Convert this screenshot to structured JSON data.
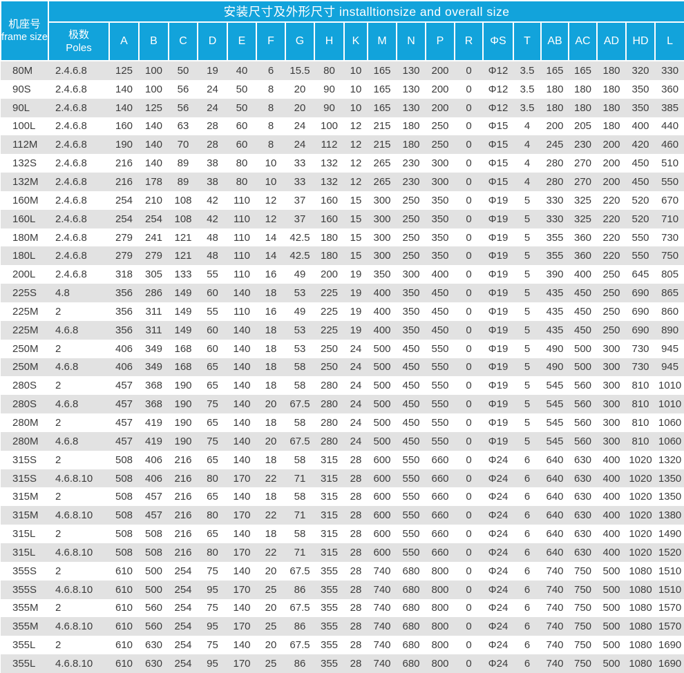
{
  "colors": {
    "header_bg": "#12a3db",
    "header_text": "#ffffff",
    "row_stripe": "#e2e2e2",
    "row_plain": "#ffffff",
    "body_text": "#3b3b3b"
  },
  "table": {
    "title_zh": "安装尺寸及外形尺寸",
    "title_en": "installtionsize and overall size",
    "title_full": "安装尺寸及外形尺寸 installtionsize and overall size",
    "frame_size_header_zh": "机座号",
    "frame_size_header_en": "frame size",
    "poles_header_zh": "极数",
    "poles_header_en": "Poles",
    "dim_columns": [
      "A",
      "B",
      "C",
      "D",
      "E",
      "F",
      "G",
      "H",
      "K",
      "M",
      "N",
      "P",
      "R",
      "ΦS",
      "T",
      "AB",
      "AC",
      "AD",
      "HD",
      "L"
    ],
    "rows": [
      {
        "frame": "80M",
        "poles": "2.4.6.8",
        "values": [
          125,
          100,
          50,
          19,
          40,
          6,
          15.5,
          80,
          10,
          165,
          130,
          200,
          0,
          "Φ12",
          3.5,
          165,
          165,
          180,
          320,
          330
        ]
      },
      {
        "frame": "90S",
        "poles": "2.4.6.8",
        "values": [
          140,
          100,
          56,
          24,
          50,
          8,
          20,
          90,
          10,
          165,
          130,
          200,
          0,
          "Φ12",
          3.5,
          180,
          180,
          180,
          350,
          360
        ]
      },
      {
        "frame": "90L",
        "poles": "2.4.6.8",
        "values": [
          140,
          125,
          56,
          24,
          50,
          8,
          20,
          90,
          10,
          165,
          130,
          200,
          0,
          "Φ12",
          3.5,
          180,
          180,
          180,
          350,
          385
        ]
      },
      {
        "frame": "100L",
        "poles": "2.4.6.8",
        "values": [
          160,
          140,
          63,
          28,
          60,
          8,
          24,
          100,
          12,
          215,
          180,
          250,
          0,
          "Φ15",
          4,
          200,
          205,
          180,
          400,
          440
        ]
      },
      {
        "frame": "112M",
        "poles": "2.4.6.8",
        "values": [
          190,
          140,
          70,
          28,
          60,
          8,
          24,
          112,
          12,
          215,
          180,
          250,
          0,
          "Φ15",
          4,
          245,
          230,
          200,
          420,
          460
        ]
      },
      {
        "frame": "132S",
        "poles": "2.4.6.8",
        "values": [
          216,
          140,
          89,
          38,
          80,
          10,
          33,
          132,
          12,
          265,
          230,
          300,
          0,
          "Φ15",
          4,
          280,
          270,
          200,
          450,
          510
        ]
      },
      {
        "frame": "132M",
        "poles": "2.4.6.8",
        "values": [
          216,
          178,
          89,
          38,
          80,
          10,
          33,
          132,
          12,
          265,
          230,
          300,
          0,
          "Φ15",
          4,
          280,
          270,
          200,
          450,
          550
        ]
      },
      {
        "frame": "160M",
        "poles": "2.4.6.8",
        "values": [
          254,
          210,
          108,
          42,
          110,
          12,
          37,
          160,
          15,
          300,
          250,
          350,
          0,
          "Φ19",
          5,
          330,
          325,
          220,
          520,
          670
        ]
      },
      {
        "frame": "160L",
        "poles": "2.4.6.8",
        "values": [
          254,
          254,
          108,
          42,
          110,
          12,
          37,
          160,
          15,
          300,
          250,
          350,
          0,
          "Φ19",
          5,
          330,
          325,
          220,
          520,
          710
        ]
      },
      {
        "frame": "180M",
        "poles": "2.4.6.8",
        "values": [
          279,
          241,
          121,
          48,
          110,
          14,
          42.5,
          180,
          15,
          300,
          250,
          350,
          0,
          "Φ19",
          5,
          355,
          360,
          220,
          550,
          730
        ]
      },
      {
        "frame": "180L",
        "poles": "2.4.6.8",
        "values": [
          279,
          279,
          121,
          48,
          110,
          14,
          42.5,
          180,
          15,
          300,
          250,
          350,
          0,
          "Φ19",
          5,
          355,
          360,
          220,
          550,
          750
        ]
      },
      {
        "frame": "200L",
        "poles": "2.4.6.8",
        "values": [
          318,
          305,
          133,
          55,
          110,
          16,
          49,
          200,
          19,
          350,
          300,
          400,
          0,
          "Φ19",
          5,
          390,
          400,
          250,
          645,
          805
        ]
      },
      {
        "frame": "225S",
        "poles": "4.8",
        "values": [
          356,
          286,
          149,
          60,
          140,
          18,
          53,
          225,
          19,
          400,
          350,
          450,
          0,
          "Φ19",
          5,
          435,
          450,
          250,
          690,
          865
        ]
      },
      {
        "frame": "225M",
        "poles": "2",
        "values": [
          356,
          311,
          149,
          55,
          110,
          16,
          49,
          225,
          19,
          400,
          350,
          450,
          0,
          "Φ19",
          5,
          435,
          450,
          250,
          690,
          860
        ]
      },
      {
        "frame": "225M",
        "poles": "4.6.8",
        "values": [
          356,
          311,
          149,
          60,
          140,
          18,
          53,
          225,
          19,
          400,
          350,
          450,
          0,
          "Φ19",
          5,
          435,
          450,
          250,
          690,
          890
        ]
      },
      {
        "frame": "250M",
        "poles": "2",
        "values": [
          406,
          349,
          168,
          60,
          140,
          18,
          53,
          250,
          24,
          500,
          450,
          550,
          0,
          "Φ19",
          5,
          490,
          500,
          300,
          730,
          945
        ]
      },
      {
        "frame": "250M",
        "poles": "4.6.8",
        "values": [
          406,
          349,
          168,
          65,
          140,
          18,
          58,
          250,
          24,
          500,
          450,
          550,
          0,
          "Φ19",
          5,
          490,
          500,
          300,
          730,
          945
        ]
      },
      {
        "frame": "280S",
        "poles": "2",
        "values": [
          457,
          368,
          190,
          65,
          140,
          18,
          58,
          280,
          24,
          500,
          450,
          550,
          0,
          "Φ19",
          5,
          545,
          560,
          300,
          810,
          1010
        ]
      },
      {
        "frame": "280S",
        "poles": "4.6.8",
        "values": [
          457,
          368,
          190,
          75,
          140,
          20,
          67.5,
          280,
          24,
          500,
          450,
          550,
          0,
          "Φ19",
          5,
          545,
          560,
          300,
          810,
          1010
        ]
      },
      {
        "frame": "280M",
        "poles": "2",
        "values": [
          457,
          419,
          190,
          65,
          140,
          18,
          58,
          280,
          24,
          500,
          450,
          550,
          0,
          "Φ19",
          5,
          545,
          560,
          300,
          810,
          1060
        ]
      },
      {
        "frame": "280M",
        "poles": "4.6.8",
        "values": [
          457,
          419,
          190,
          75,
          140,
          20,
          67.5,
          280,
          24,
          500,
          450,
          550,
          0,
          "Φ19",
          5,
          545,
          560,
          300,
          810,
          1060
        ]
      },
      {
        "frame": "315S",
        "poles": "2",
        "values": [
          508,
          406,
          216,
          65,
          140,
          18,
          58,
          315,
          28,
          600,
          550,
          660,
          0,
          "Φ24",
          6,
          640,
          630,
          400,
          1020,
          1320
        ]
      },
      {
        "frame": "315S",
        "poles": "4.6.8.10",
        "values": [
          508,
          406,
          216,
          80,
          170,
          22,
          71,
          315,
          28,
          600,
          550,
          660,
          0,
          "Φ24",
          6,
          640,
          630,
          400,
          1020,
          1350
        ]
      },
      {
        "frame": "315M",
        "poles": "2",
        "values": [
          508,
          457,
          216,
          65,
          140,
          18,
          58,
          315,
          28,
          600,
          550,
          660,
          0,
          "Φ24",
          6,
          640,
          630,
          400,
          1020,
          1350
        ]
      },
      {
        "frame": "315M",
        "poles": "4.6.8.10",
        "values": [
          508,
          457,
          216,
          80,
          170,
          22,
          71,
          315,
          28,
          600,
          550,
          660,
          0,
          "Φ24",
          6,
          640,
          630,
          400,
          1020,
          1380
        ]
      },
      {
        "frame": "315L",
        "poles": "2",
        "values": [
          508,
          508,
          216,
          65,
          140,
          18,
          58,
          315,
          28,
          600,
          550,
          660,
          0,
          "Φ24",
          6,
          640,
          630,
          400,
          1020,
          1490
        ]
      },
      {
        "frame": "315L",
        "poles": "4.6.8.10",
        "values": [
          508,
          508,
          216,
          80,
          170,
          22,
          71,
          315,
          28,
          600,
          550,
          660,
          0,
          "Φ24",
          6,
          640,
          630,
          400,
          1020,
          1520
        ]
      },
      {
        "frame": "355S",
        "poles": "2",
        "values": [
          610,
          500,
          254,
          75,
          140,
          20,
          67.5,
          355,
          28,
          740,
          680,
          800,
          0,
          "Φ24",
          6,
          740,
          750,
          500,
          1080,
          1510
        ]
      },
      {
        "frame": "355S",
        "poles": "4.6.8.10",
        "values": [
          610,
          500,
          254,
          95,
          170,
          25,
          86,
          355,
          28,
          740,
          680,
          800,
          0,
          "Φ24",
          6,
          740,
          750,
          500,
          1080,
          1510
        ]
      },
      {
        "frame": "355M",
        "poles": "2",
        "values": [
          610,
          560,
          254,
          75,
          140,
          20,
          67.5,
          355,
          28,
          740,
          680,
          800,
          0,
          "Φ24",
          6,
          740,
          750,
          500,
          1080,
          1570
        ]
      },
      {
        "frame": "355M",
        "poles": "4.6.8.10",
        "values": [
          610,
          560,
          254,
          95,
          170,
          25,
          86,
          355,
          28,
          740,
          680,
          800,
          0,
          "Φ24",
          6,
          740,
          750,
          500,
          1080,
          1570
        ]
      },
      {
        "frame": "355L",
        "poles": "2",
        "values": [
          610,
          630,
          254,
          75,
          140,
          20,
          67.5,
          355,
          28,
          740,
          680,
          800,
          0,
          "Φ24",
          6,
          740,
          750,
          500,
          1080,
          1690
        ]
      },
      {
        "frame": "355L",
        "poles": "4.6.8.10",
        "values": [
          610,
          630,
          254,
          95,
          170,
          25,
          86,
          355,
          28,
          740,
          680,
          800,
          0,
          "Φ24",
          6,
          740,
          750,
          500,
          1080,
          1690
        ]
      }
    ]
  }
}
